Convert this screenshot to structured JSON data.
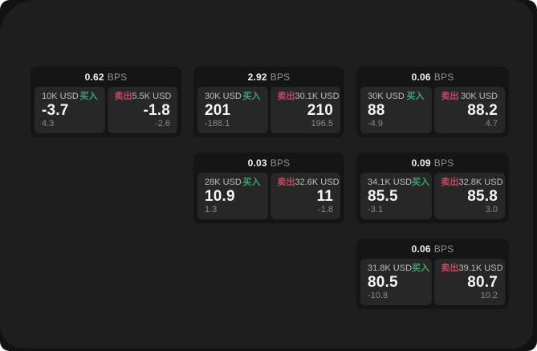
{
  "labels": {
    "bps_unit": "BPS",
    "buy": "买入",
    "sell": "卖出"
  },
  "colors": {
    "buy_green": "#3aa571",
    "sell_red": "#c44a63",
    "surface_background": "#1e1e1e",
    "card_background": "#151515",
    "tile_background": "#272727"
  },
  "cards": [
    {
      "bps": "0.62",
      "buy": {
        "amount": "10K USD",
        "price": "-3.7",
        "sub": "4.3"
      },
      "sell": {
        "amount": "5.5K USD",
        "price": "-1.8",
        "sub": "-2.6"
      }
    },
    {
      "bps": "2.92",
      "buy": {
        "amount": "30K USD",
        "price": "201",
        "sub": "-188.1"
      },
      "sell": {
        "amount": "30.1K USD",
        "price": "210",
        "sub": "196.5"
      }
    },
    {
      "bps": "0.06",
      "buy": {
        "amount": "30K USD",
        "price": "88",
        "sub": "-4.9"
      },
      "sell": {
        "amount": "30K USD",
        "price": "88.2",
        "sub": "4.7"
      }
    },
    {
      "bps": "0.03",
      "buy": {
        "amount": "28K USD",
        "price": "10.9",
        "sub": "1.3"
      },
      "sell": {
        "amount": "32.6K USD",
        "price": "11",
        "sub": "-1.8"
      }
    },
    {
      "bps": "0.09",
      "buy": {
        "amount": "34.1K USD",
        "price": "85.5",
        "sub": "-3.1"
      },
      "sell": {
        "amount": "32.8K USD",
        "price": "85.8",
        "sub": "3.0"
      }
    },
    {
      "bps": "0.06",
      "buy": {
        "amount": "31.8K USD",
        "price": "80.5",
        "sub": "-10.8"
      },
      "sell": {
        "amount": "39.1K USD",
        "price": "80.7",
        "sub": "10.2"
      }
    }
  ]
}
